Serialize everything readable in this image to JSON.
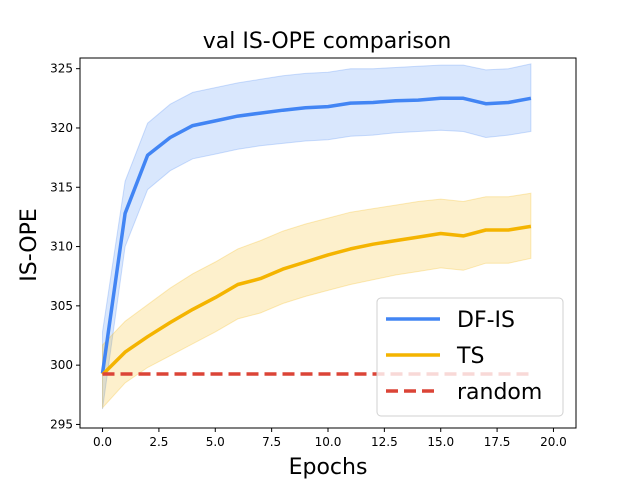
{
  "chart_data": {
    "type": "line",
    "title": "val IS-OPE comparison",
    "xlabel": "Epochs",
    "ylabel": "IS-OPE",
    "xlim": [
      -1,
      21
    ],
    "ylim": [
      294.7,
      325.9
    ],
    "x_ticks": [
      0,
      2.5,
      5,
      7.5,
      10,
      12.5,
      15,
      17.5,
      20
    ],
    "x_tick_labels": [
      "0.0",
      "2.5",
      "5.0",
      "7.5",
      "10.0",
      "12.5",
      "15.0",
      "17.5",
      "20.0"
    ],
    "y_ticks": [
      295,
      300,
      305,
      310,
      315,
      320,
      325
    ],
    "y_tick_labels": [
      "295",
      "300",
      "305",
      "310",
      "315",
      "320",
      "325"
    ],
    "grid": false,
    "legend_position": "bottom-right",
    "series": [
      {
        "name": "DF-IS",
        "color": "#4285f4",
        "style": "solid",
        "x": [
          0,
          1,
          2,
          3,
          4,
          5,
          6,
          7,
          8,
          9,
          10,
          11,
          12,
          13,
          14,
          15,
          16,
          17,
          18,
          19
        ],
        "values": [
          299.3,
          312.8,
          317.7,
          319.2,
          320.2,
          320.6,
          321.0,
          321.25,
          321.5,
          321.7,
          321.8,
          322.1,
          322.15,
          322.3,
          322.35,
          322.5,
          322.5,
          322.05,
          322.15,
          322.5
        ],
        "upper": [
          302.8,
          315.5,
          320.4,
          322.0,
          323.0,
          323.4,
          323.8,
          324.1,
          324.4,
          324.6,
          324.7,
          325.0,
          325.0,
          325.1,
          325.2,
          325.3,
          325.3,
          324.9,
          325.0,
          325.4
        ],
        "lower": [
          296.3,
          310.0,
          314.8,
          316.4,
          317.4,
          317.8,
          318.2,
          318.5,
          318.7,
          318.9,
          319.0,
          319.3,
          319.4,
          319.6,
          319.7,
          319.8,
          319.7,
          319.2,
          319.4,
          319.7
        ]
      },
      {
        "name": "TS",
        "color": "#f4b400",
        "style": "solid",
        "x": [
          0,
          1,
          2,
          3,
          4,
          5,
          6,
          7,
          8,
          9,
          10,
          11,
          12,
          13,
          14,
          15,
          16,
          17,
          18,
          19
        ],
        "values": [
          299.2,
          301.1,
          302.4,
          303.6,
          304.7,
          305.7,
          306.8,
          307.3,
          308.1,
          308.7,
          309.3,
          309.8,
          310.2,
          310.5,
          310.8,
          311.1,
          310.9,
          311.4,
          311.4,
          311.7
        ],
        "upper": [
          301.7,
          303.7,
          305.1,
          306.5,
          307.7,
          308.7,
          309.8,
          310.5,
          311.3,
          311.9,
          312.4,
          312.9,
          313.2,
          313.5,
          313.8,
          314.0,
          313.8,
          314.2,
          314.2,
          314.5
        ],
        "lower": [
          296.4,
          298.5,
          299.8,
          300.8,
          301.8,
          302.8,
          303.9,
          304.4,
          305.2,
          305.8,
          306.3,
          306.8,
          307.2,
          307.6,
          307.9,
          308.2,
          308.0,
          308.6,
          308.6,
          309.0
        ]
      },
      {
        "name": "random",
        "color": "#db4437",
        "style": "dashed",
        "x": [
          0,
          19
        ],
        "values": [
          299.25,
          299.25
        ]
      }
    ]
  }
}
